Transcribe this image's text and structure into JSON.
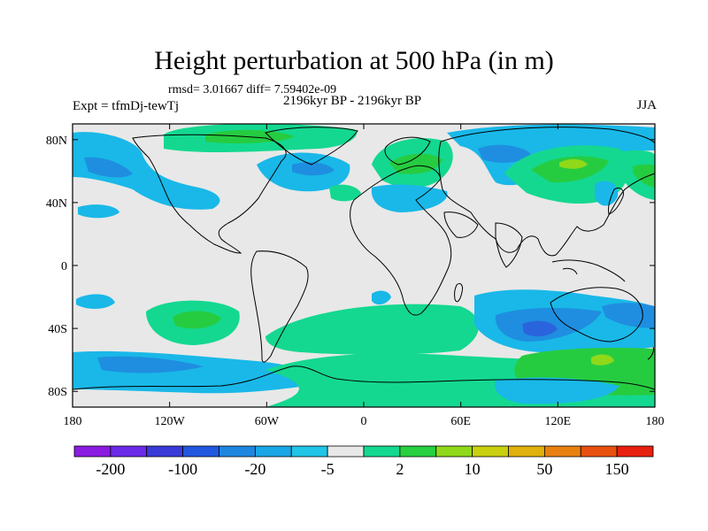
{
  "header": {
    "title": "Height perturbation at 500 hPa (in m)",
    "stats": "rmsd= 3.01667 diff= 7.59402e-09",
    "period": "2196kyr BP - 2196kyr BP",
    "experiment": "Expt = tfmDj-tewTj",
    "season": "JJA"
  },
  "axes": {
    "y_ticks": [
      {
        "label": "80N",
        "lat": 80
      },
      {
        "label": "40N",
        "lat": 40
      },
      {
        "label": "0",
        "lat": 0
      },
      {
        "label": "40S",
        "lat": -40
      },
      {
        "label": "80S",
        "lat": -80
      }
    ],
    "x_ticks": [
      {
        "label": "180",
        "lon": -180
      },
      {
        "label": "120W",
        "lon": -120
      },
      {
        "label": "60W",
        "lon": -60
      },
      {
        "label": "0",
        "lon": 0
      },
      {
        "label": "60E",
        "lon": 60
      },
      {
        "label": "120E",
        "lon": 120
      },
      {
        "label": "180",
        "lon": 180
      }
    ]
  },
  "colorbar": {
    "colors": [
      "#8a1be0",
      "#6a2ae8",
      "#3a3ad8",
      "#2258e0",
      "#1f86e0",
      "#19a6e6",
      "#20c4e6",
      "#e8e8e8",
      "#14d890",
      "#26d040",
      "#90d81a",
      "#c8d010",
      "#e0b00c",
      "#e88010",
      "#e85010",
      "#e82010"
    ],
    "labels": [
      {
        "text": "-200",
        "index": 1
      },
      {
        "text": "-100",
        "index": 3
      },
      {
        "text": "-20",
        "index": 5
      },
      {
        "text": "-5",
        "index": 7
      },
      {
        "text": "2",
        "index": 9
      },
      {
        "text": "10",
        "index": 11
      },
      {
        "text": "50",
        "index": 13
      },
      {
        "text": "150",
        "index": 15
      }
    ]
  },
  "palette": {
    "background": "#e8e8e8",
    "light_blue": "#19b8e8",
    "blue": "#1f8ee0",
    "dark_blue": "#2a64dc",
    "teal_green": "#14d890",
    "green": "#26cc40",
    "yellow_green": "#90d81a"
  }
}
